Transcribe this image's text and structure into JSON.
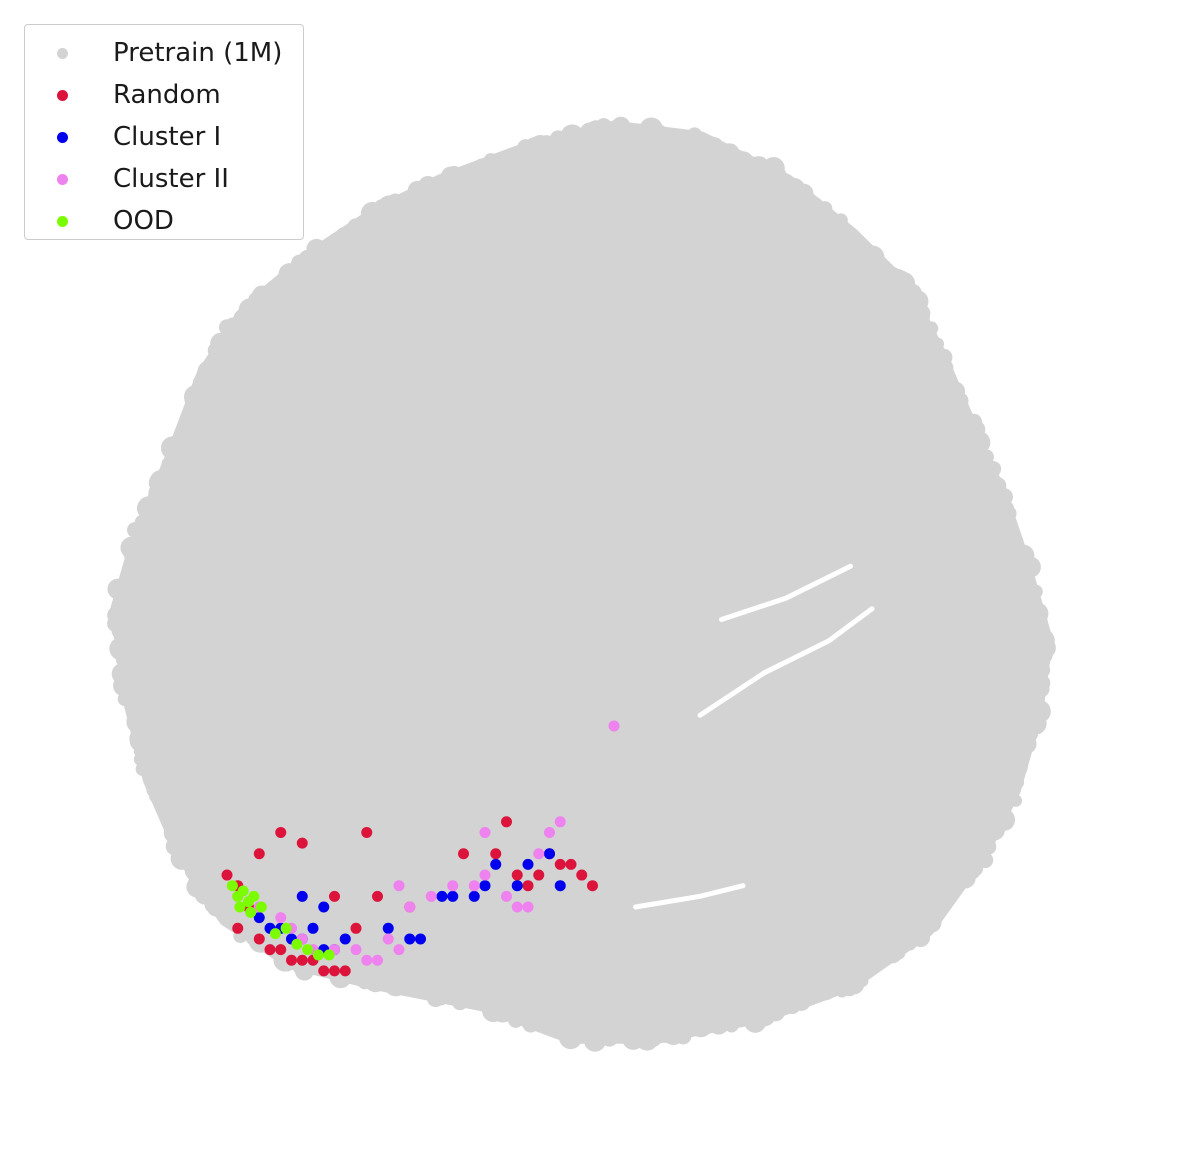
{
  "chart_data": {
    "type": "scatter",
    "title": "",
    "xlabel": "",
    "ylabel": "",
    "axes_visible": false,
    "grid": false,
    "legend_placement": "top-left",
    "xlim": [
      0,
      100
    ],
    "ylim": [
      0,
      100
    ],
    "series": [
      {
        "name": "Pretrain (1M)",
        "color": "#d3d3d3",
        "points_description_free": true,
        "outline_polygon": [
          [
            52,
            93
          ],
          [
            60,
            92
          ],
          [
            68,
            88
          ],
          [
            74,
            83
          ],
          [
            79,
            78
          ],
          [
            82,
            72
          ],
          [
            85,
            65
          ],
          [
            88,
            58
          ],
          [
            90,
            52
          ],
          [
            92,
            45
          ],
          [
            91,
            38
          ],
          [
            89,
            31
          ],
          [
            86,
            25
          ],
          [
            81,
            18
          ],
          [
            74,
            13
          ],
          [
            66,
            10
          ],
          [
            56,
            8
          ],
          [
            48,
            8
          ],
          [
            40,
            11
          ],
          [
            30,
            13
          ],
          [
            22,
            15
          ],
          [
            16,
            19
          ],
          [
            12,
            25
          ],
          [
            9,
            32
          ],
          [
            7,
            40
          ],
          [
            6,
            48
          ],
          [
            8,
            55
          ],
          [
            11,
            62
          ],
          [
            14,
            70
          ],
          [
            18,
            76
          ],
          [
            24,
            81
          ],
          [
            30,
            85
          ],
          [
            36,
            88
          ],
          [
            44,
            91
          ]
        ]
      },
      {
        "name": "Random",
        "color": "#dc143c",
        "x": [
          16,
          17,
          18,
          17,
          19,
          20,
          21,
          22,
          23,
          25,
          26,
          27,
          24,
          28,
          21,
          23,
          29,
          38,
          41,
          43,
          45,
          46,
          47,
          48,
          49,
          50,
          19,
          26,
          30,
          33,
          44,
          42
        ],
        "y": [
          23,
          22,
          20,
          18,
          17,
          16,
          16,
          15,
          15,
          14,
          14,
          14,
          15,
          18,
          27,
          26,
          27,
          25,
          25,
          23,
          23,
          25,
          24,
          24,
          23,
          22,
          25,
          21,
          21,
          20,
          22,
          28
        ]
      },
      {
        "name": "Cluster I",
        "color": "#0000ee",
        "x": [
          19,
          20,
          21,
          22,
          23,
          24,
          25,
          26,
          27,
          31,
          33,
          34,
          36,
          37,
          39,
          40,
          41,
          43,
          44,
          46,
          47,
          23,
          25
        ],
        "y": [
          19,
          18,
          18,
          17,
          17,
          18,
          16,
          16,
          17,
          18,
          17,
          17,
          21,
          21,
          21,
          22,
          24,
          22,
          24,
          25,
          22,
          21,
          20
        ]
      },
      {
        "name": "Cluster II",
        "color": "#ee82ee",
        "x": [
          17,
          19,
          21,
          22,
          23,
          24,
          26,
          28,
          29,
          30,
          31,
          32,
          33,
          35,
          37,
          39,
          40,
          42,
          43,
          44,
          45,
          46,
          47,
          52,
          32,
          40
        ],
        "y": [
          21,
          20,
          19,
          18,
          17,
          16,
          16,
          16,
          15,
          15,
          17,
          16,
          20,
          21,
          22,
          22,
          23,
          21,
          20,
          20,
          25,
          27,
          28,
          37,
          22,
          27
        ]
      },
      {
        "name": "OOD",
        "color": "#7cfc00",
        "x": [
          16.5,
          17,
          17.5,
          18,
          18.5,
          17.2,
          18.2,
          19.2,
          20.5,
          21.5,
          22.5,
          23.5,
          24.5,
          25.5
        ],
        "y": [
          22,
          21,
          21.5,
          20.5,
          21,
          20,
          19.5,
          20,
          17.5,
          18,
          16.5,
          16,
          15.5,
          15.5
        ]
      }
    ]
  },
  "legend": {
    "items": [
      {
        "label": "Pretrain (1M)",
        "color": "#d3d3d3"
      },
      {
        "label": "Random",
        "color": "#dc143c"
      },
      {
        "label": "Cluster I",
        "color": "#0000ee"
      },
      {
        "label": "Cluster II",
        "color": "#ee82ee"
      },
      {
        "label": "OOD",
        "color": "#7cfc00"
      }
    ]
  }
}
